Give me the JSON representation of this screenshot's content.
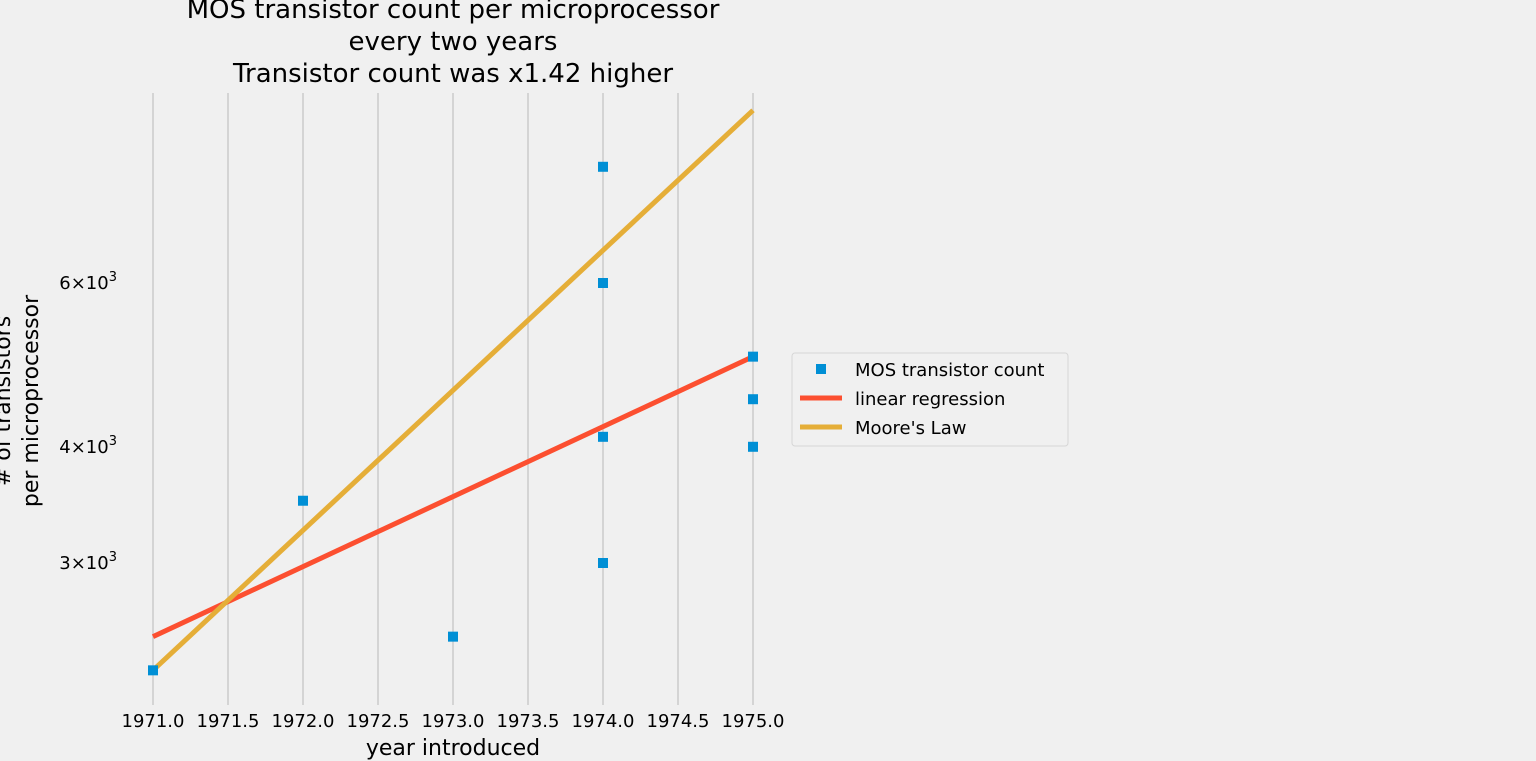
{
  "chart_data": {
    "type": "scatter",
    "title_lines": [
      "MOS transistor count per microprocessor",
      "every two years",
      "Transistor count was x1.42 higher"
    ],
    "xlabel": "year introduced",
    "ylabel_lines": [
      "# of transistors",
      "per microprocessor"
    ],
    "xlim": [
      1971.0,
      1975.0
    ],
    "ylim": [
      2300,
      10000
    ],
    "yscale": "log",
    "x_ticks": [
      1971.0,
      1971.5,
      1972.0,
      1972.5,
      1973.0,
      1973.5,
      1974.0,
      1974.5,
      1975.0
    ],
    "x_tick_labels": [
      "1971.0",
      "1971.5",
      "1972.0",
      "1972.5",
      "1973.0",
      "1973.5",
      "1974.0",
      "1974.5",
      "1975.0"
    ],
    "y_ticks": [
      {
        "value": 3000,
        "mantissa": "3",
        "exponent": "3"
      },
      {
        "value": 4000,
        "mantissa": "4",
        "exponent": "3"
      },
      {
        "value": 6000,
        "mantissa": "6",
        "exponent": "3"
      }
    ],
    "grid": "x",
    "legend_position": "right",
    "series": [
      {
        "name": "MOS transistor count",
        "kind": "markers",
        "marker": "square",
        "color": "#008fd5",
        "x": [
          1971,
          1972,
          1973,
          1974,
          1974,
          1974,
          1974,
          1975,
          1975,
          1975
        ],
        "y": [
          2300,
          3500,
          2500,
          3000,
          4100,
          6000,
          8000,
          4000,
          4500,
          5000
        ]
      },
      {
        "name": "linear regression",
        "kind": "line",
        "color": "#fc4f30",
        "x": [
          1971,
          1975
        ],
        "y": [
          2500,
          5000
        ]
      },
      {
        "name": "Moore's Law",
        "kind": "line",
        "color": "#e5ae38",
        "x": [
          1971,
          1975
        ],
        "y": [
          2300,
          9200
        ]
      }
    ]
  }
}
